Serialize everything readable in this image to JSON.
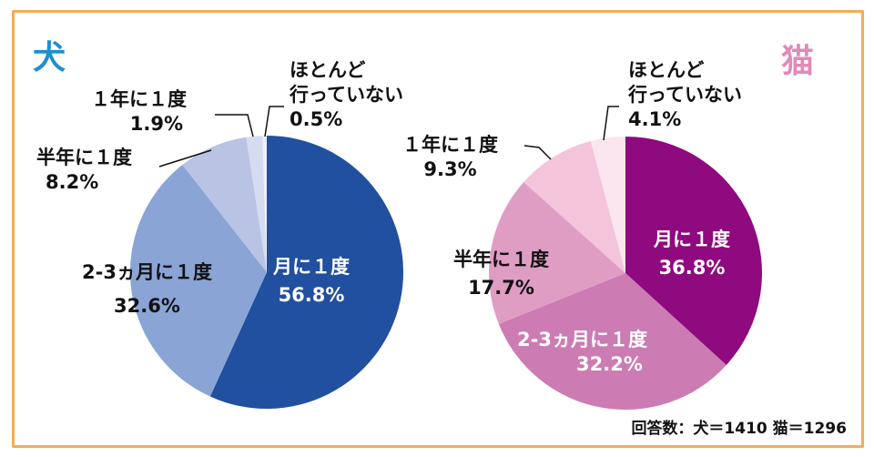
{
  "chart_data": [
    {
      "type": "pie",
      "title": "犬",
      "title_color": "#1e8fd0",
      "slices": [
        {
          "label": "月に１度",
          "value": 56.8,
          "display": "56.8%",
          "color": "#2150a0"
        },
        {
          "label": "2-3ヵ月に１度",
          "value": 32.6,
          "display": "32.6%",
          "color": "#8aa4d6"
        },
        {
          "label": "半年に１度",
          "value": 8.2,
          "display": "8.2%",
          "color": "#b9c3e4"
        },
        {
          "label": "１年に１度",
          "value": 1.9,
          "display": "1.9%",
          "color": "#d6dcf0"
        },
        {
          "label": "ほとんど\n行っていない",
          "value": 0.5,
          "display": "0.5%",
          "color": "#eef0f8"
        }
      ]
    },
    {
      "type": "pie",
      "title": "猫",
      "title_color": "#e08ab8",
      "slices": [
        {
          "label": "月に１度",
          "value": 36.8,
          "display": "36.8%",
          "color": "#8f0a7e"
        },
        {
          "label": "2-3ヵ月に１度",
          "value": 32.2,
          "display": "32.2%",
          "color": "#cc7bb3"
        },
        {
          "label": "半年に１度",
          "value": 17.7,
          "display": "17.7%",
          "color": "#e09dc4"
        },
        {
          "label": "１年に１度",
          "value": 9.3,
          "display": "9.3%",
          "color": "#f3c4da"
        },
        {
          "label": "ほとんど\n行っていない",
          "value": 4.1,
          "display": "4.1%",
          "color": "#fbe5ef"
        }
      ]
    }
  ],
  "note": "回答数：犬＝1410 猫＝1296",
  "frame_color": "#f6ab52"
}
